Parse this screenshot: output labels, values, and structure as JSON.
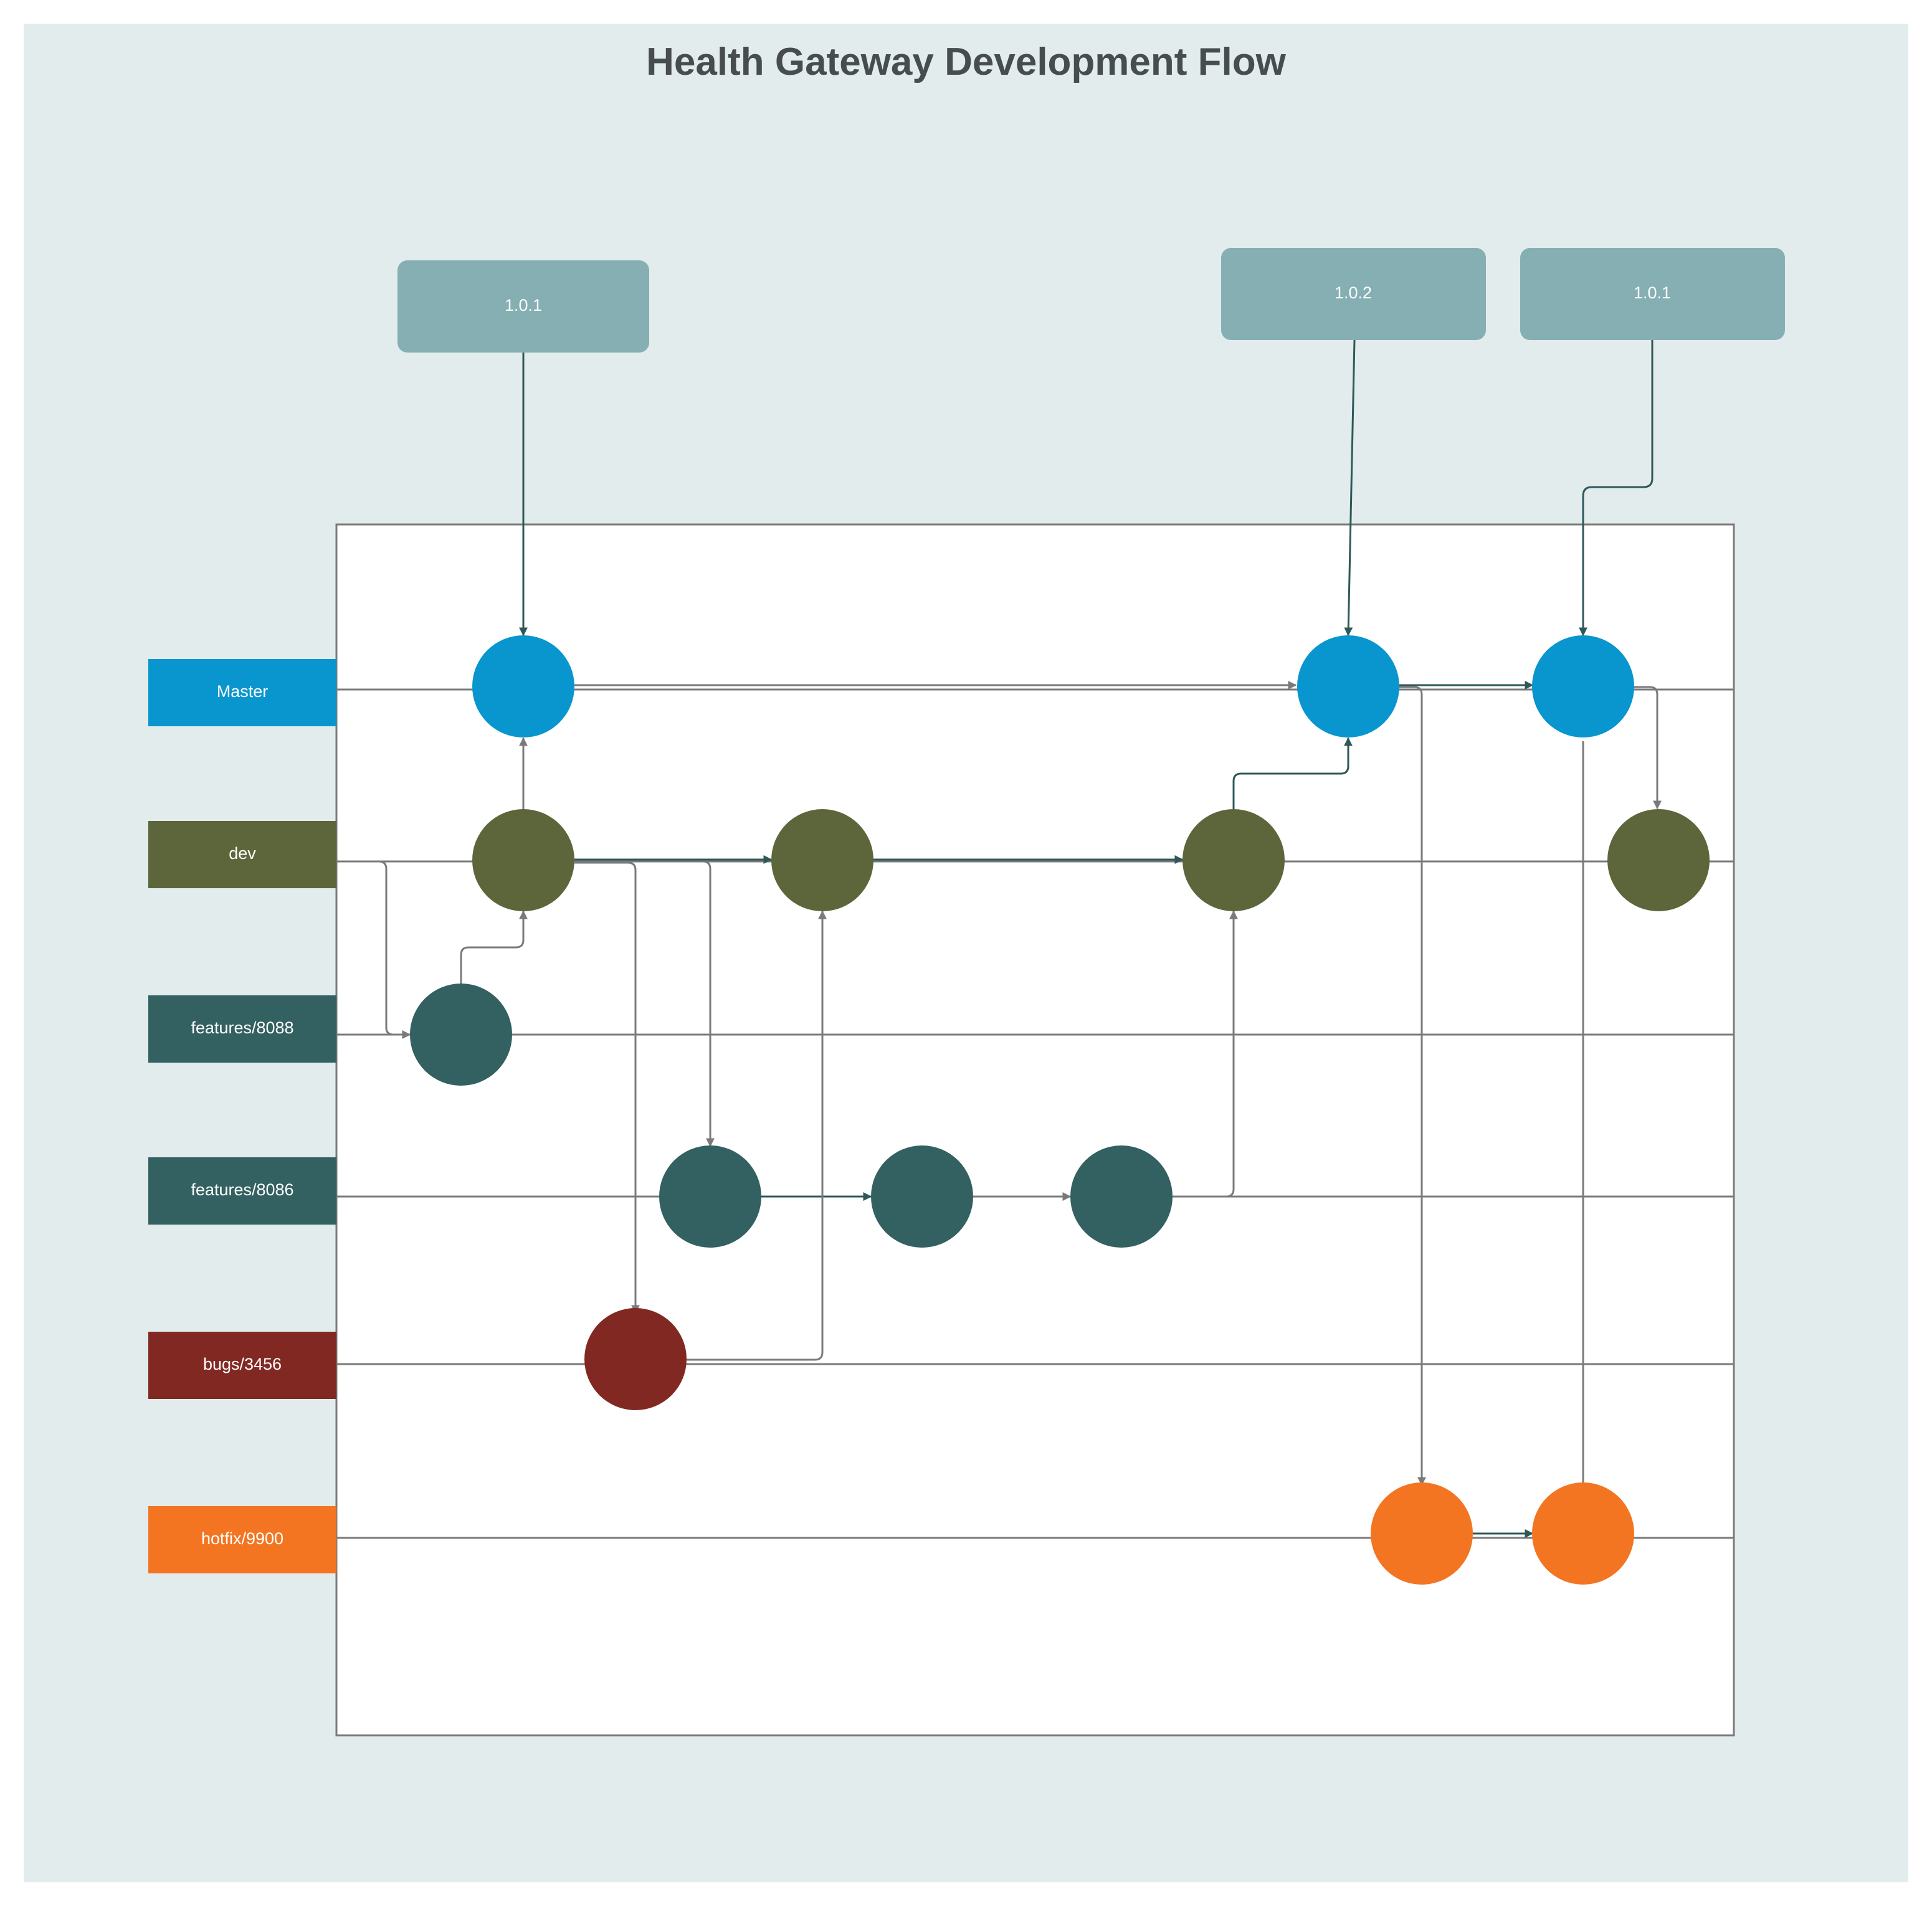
{
  "title": "Health Gateway Development Flow",
  "colors": {
    "background": "#e2ecec",
    "panel": "#ffffff",
    "master": "#0995ce",
    "dev": "#5c663a",
    "feature": "#336060",
    "bug": "#822822",
    "hotfix": "#f37521",
    "tag": "#86afb3",
    "line_gray": "#7a7a7a",
    "line_dark": "#2f5858"
  },
  "branches": [
    {
      "id": "master",
      "label": "Master",
      "color": "#0995ce"
    },
    {
      "id": "dev",
      "label": "dev",
      "color": "#5c663a"
    },
    {
      "id": "features-8088",
      "label": "features/8088",
      "color": "#336060"
    },
    {
      "id": "features-8086",
      "label": "features/8086",
      "color": "#336060"
    },
    {
      "id": "bugs-3456",
      "label": "bugs/3456",
      "color": "#822822"
    },
    {
      "id": "hotfix-9900",
      "label": "hotfix/9900",
      "color": "#f37521"
    }
  ],
  "tags": [
    {
      "id": "tag-1",
      "label": "1.0.1"
    },
    {
      "id": "tag-2",
      "label": "1.0.2"
    },
    {
      "id": "tag-3",
      "label": "1.0.1"
    }
  ]
}
